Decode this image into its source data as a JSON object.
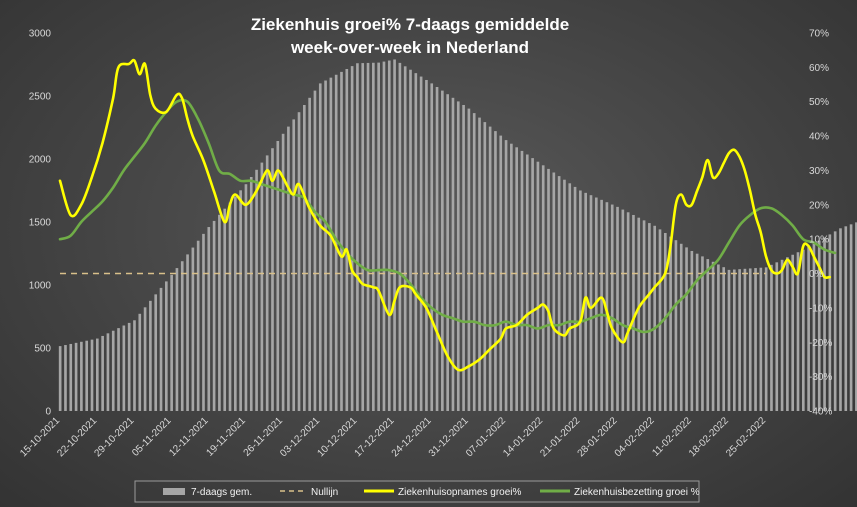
{
  "chart_data": {
    "type": "bar+line",
    "title_line1": "Ziekenhuis groei% 7-daags gemiddelde",
    "title_line2": "week-over-week in Nederland",
    "y_left": {
      "min": 0,
      "max": 3000,
      "step": 500,
      "ticks": [
        "0",
        "500",
        "1000",
        "1500",
        "2000",
        "2500",
        "3000"
      ]
    },
    "y_right": {
      "min": -40,
      "max": 70,
      "step": 10,
      "ticks": [
        "-40%",
        "-30%",
        "-20%",
        "-10%",
        "0%",
        "10%",
        "20%",
        "30%",
        "40%",
        "50%",
        "60%",
        "70%"
      ]
    },
    "x_start": "2021-10-15",
    "x_days": 133,
    "x_tick_labels": [
      "15-10-2021",
      "22-10-2021",
      "29-10-2021",
      "05-11-2021",
      "12-11-2021",
      "19-11-2021",
      "26-11-2021",
      "03-12-2021",
      "10-12-2021",
      "17-12-2021",
      "24-12-2021",
      "31-12-2021",
      "07-01-2022",
      "14-01-2022",
      "21-01-2022",
      "28-01-2022",
      "04-02-2022",
      "11-02-2022",
      "18-02-2022",
      "25-02-2022"
    ],
    "bars_series": {
      "name": "7-daags gem.",
      "color": "#a6a6a6",
      "keypoints": [
        [
          0,
          515
        ],
        [
          7,
          575
        ],
        [
          14,
          720
        ],
        [
          21,
          1080
        ],
        [
          28,
          1460
        ],
        [
          35,
          1800
        ],
        [
          42,
          2200
        ],
        [
          49,
          2600
        ],
        [
          56,
          2760
        ],
        [
          60,
          2765
        ],
        [
          63,
          2790
        ],
        [
          70,
          2600
        ],
        [
          77,
          2400
        ],
        [
          84,
          2150
        ],
        [
          91,
          1950
        ],
        [
          98,
          1750
        ],
        [
          105,
          1620
        ],
        [
          112,
          1470
        ],
        [
          119,
          1270
        ],
        [
          126,
          1120
        ],
        [
          133,
          1140
        ],
        [
          140,
          1280
        ],
        [
          147,
          1450
        ],
        [
          154,
          1560
        ],
        [
          158,
          1585
        ]
      ]
    },
    "nullijn": {
      "name": "Nullijn",
      "value": 0,
      "color": "#d9c08a"
    },
    "series_yellow": {
      "name": "Ziekenhuisopnames groei%",
      "color": "#ffff00",
      "keypoints": [
        [
          0,
          27
        ],
        [
          2,
          17
        ],
        [
          4,
          20
        ],
        [
          6,
          28
        ],
        [
          8,
          38
        ],
        [
          10,
          51
        ],
        [
          11,
          60
        ],
        [
          13,
          61
        ],
        [
          14,
          62
        ],
        [
          15,
          58
        ],
        [
          16,
          61
        ],
        [
          17,
          52
        ],
        [
          18,
          48
        ],
        [
          20,
          47
        ],
        [
          22,
          52
        ],
        [
          23,
          51
        ],
        [
          24,
          45
        ],
        [
          25,
          40
        ],
        [
          27,
          33
        ],
        [
          29,
          24
        ],
        [
          31,
          15
        ],
        [
          32,
          20
        ],
        [
          33,
          23
        ],
        [
          35,
          20
        ],
        [
          37,
          24
        ],
        [
          39,
          30
        ],
        [
          40,
          27
        ],
        [
          41,
          30
        ],
        [
          42,
          28
        ],
        [
          43,
          25
        ],
        [
          44,
          23
        ],
        [
          45,
          26
        ],
        [
          47,
          19
        ],
        [
          49,
          14
        ],
        [
          51,
          11
        ],
        [
          53,
          5
        ],
        [
          54,
          7
        ],
        [
          55,
          1
        ],
        [
          56,
          -1
        ],
        [
          57,
          -3
        ],
        [
          59,
          -4
        ],
        [
          60,
          -5
        ],
        [
          62,
          -12
        ],
        [
          63,
          -8
        ],
        [
          64,
          -4
        ],
        [
          66,
          -4
        ],
        [
          67,
          -6
        ],
        [
          69,
          -10
        ],
        [
          71,
          -17
        ],
        [
          73,
          -24
        ],
        [
          75,
          -28
        ],
        [
          77,
          -27
        ],
        [
          79,
          -25
        ],
        [
          81,
          -22
        ],
        [
          83,
          -19
        ],
        [
          84,
          -16
        ],
        [
          86,
          -15
        ],
        [
          88,
          -12
        ],
        [
          90,
          -10
        ],
        [
          91,
          -9
        ],
        [
          92,
          -11
        ],
        [
          93,
          -16
        ],
        [
          95,
          -18
        ],
        [
          96,
          -16
        ],
        [
          98,
          -14
        ],
        [
          99,
          -7
        ],
        [
          100,
          -10
        ],
        [
          102,
          -7
        ],
        [
          103,
          -11
        ],
        [
          104,
          -16
        ],
        [
          106,
          -20
        ],
        [
          107,
          -17
        ],
        [
          109,
          -10
        ],
        [
          111,
          -6
        ],
        [
          112,
          -4
        ],
        [
          114,
          0
        ],
        [
          115,
          8
        ],
        [
          116,
          20
        ],
        [
          117,
          23
        ],
        [
          118,
          20
        ],
        [
          119,
          20
        ],
        [
          120,
          24
        ],
        [
          121,
          28
        ],
        [
          122,
          33
        ],
        [
          123,
          28
        ],
        [
          124,
          29
        ],
        [
          125,
          32
        ],
        [
          126,
          35
        ],
        [
          127,
          36
        ],
        [
          128,
          34
        ],
        [
          129,
          30
        ],
        [
          130,
          24
        ],
        [
          131,
          17
        ],
        [
          132,
          12
        ],
        [
          133,
          5
        ],
        [
          134,
          1
        ],
        [
          135,
          0
        ],
        [
          136,
          1
        ],
        [
          137,
          4
        ],
        [
          138,
          2
        ],
        [
          139,
          0
        ],
        [
          140,
          8
        ],
        [
          141,
          8
        ],
        [
          142,
          5
        ],
        [
          143,
          2
        ],
        [
          144,
          -1
        ],
        [
          145,
          -1
        ]
      ]
    },
    "series_green": {
      "name": "Ziekenhuisbezetting groei %",
      "color": "#70ad47",
      "keypoints": [
        [
          0,
          10
        ],
        [
          2,
          11
        ],
        [
          4,
          15
        ],
        [
          6,
          18
        ],
        [
          8,
          21
        ],
        [
          10,
          25
        ],
        [
          12,
          30
        ],
        [
          14,
          34
        ],
        [
          16,
          38
        ],
        [
          18,
          43
        ],
        [
          20,
          47
        ],
        [
          22,
          50
        ],
        [
          24,
          50
        ],
        [
          26,
          45
        ],
        [
          28,
          38
        ],
        [
          30,
          30
        ],
        [
          32,
          29
        ],
        [
          34,
          27
        ],
        [
          36,
          27
        ],
        [
          38,
          26
        ],
        [
          40,
          25
        ],
        [
          42,
          24
        ],
        [
          44,
          23
        ],
        [
          46,
          22
        ],
        [
          48,
          18
        ],
        [
          50,
          15
        ],
        [
          52,
          10
        ],
        [
          54,
          6
        ],
        [
          56,
          3
        ],
        [
          58,
          1
        ],
        [
          60,
          1
        ],
        [
          62,
          1
        ],
        [
          64,
          0
        ],
        [
          66,
          -3
        ],
        [
          68,
          -7
        ],
        [
          70,
          -10
        ],
        [
          72,
          -12
        ],
        [
          74,
          -13
        ],
        [
          76,
          -14
        ],
        [
          78,
          -14
        ],
        [
          80,
          -15
        ],
        [
          82,
          -15
        ],
        [
          84,
          -14
        ],
        [
          86,
          -15
        ],
        [
          88,
          -15
        ],
        [
          90,
          -16
        ],
        [
          92,
          -15
        ],
        [
          94,
          -15
        ],
        [
          96,
          -14
        ],
        [
          98,
          -14
        ],
        [
          100,
          -13
        ],
        [
          102,
          -12
        ],
        [
          104,
          -13
        ],
        [
          106,
          -15
        ],
        [
          108,
          -16
        ],
        [
          110,
          -17
        ],
        [
          112,
          -16
        ],
        [
          114,
          -13
        ],
        [
          116,
          -9
        ],
        [
          118,
          -6
        ],
        [
          120,
          -2
        ],
        [
          122,
          1
        ],
        [
          124,
          4
        ],
        [
          126,
          9
        ],
        [
          128,
          14
        ],
        [
          130,
          17
        ],
        [
          132,
          19
        ],
        [
          134,
          19
        ],
        [
          136,
          17
        ],
        [
          138,
          14
        ],
        [
          140,
          10
        ],
        [
          142,
          9
        ],
        [
          144,
          7
        ],
        [
          146,
          6
        ]
      ]
    },
    "legend_position": "bottom",
    "grid": false
  }
}
